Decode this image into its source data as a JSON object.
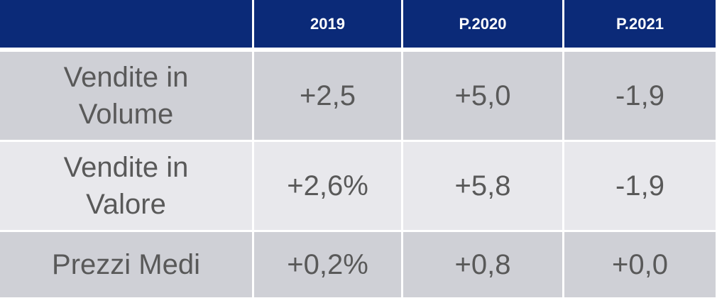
{
  "table": {
    "columns": [
      "",
      "2019",
      "P.2020",
      "P.2021"
    ],
    "rows": [
      {
        "label": "Vendite in Volume",
        "label_line1": "Vendite in",
        "label_line2": "Volume",
        "values": [
          "+2,5",
          "+5,0",
          "-1,9"
        ]
      },
      {
        "label": "Vendite in Valore",
        "label_line1": "Vendite in",
        "label_line2": "Valore",
        "values": [
          "+2,6%",
          "+5,8",
          "-1,9"
        ]
      },
      {
        "label": "Prezzi Medi",
        "label_line1": "Prezzi Medi",
        "label_line2": "",
        "values": [
          "+0,2%",
          "+0,8",
          "+0,0"
        ]
      }
    ]
  },
  "colors": {
    "header_bg": "#0b2a78",
    "header_text": "#ffffff",
    "row_dark": "#cfd0d6",
    "row_light": "#e8e8ec",
    "cell_text": "#595959"
  }
}
